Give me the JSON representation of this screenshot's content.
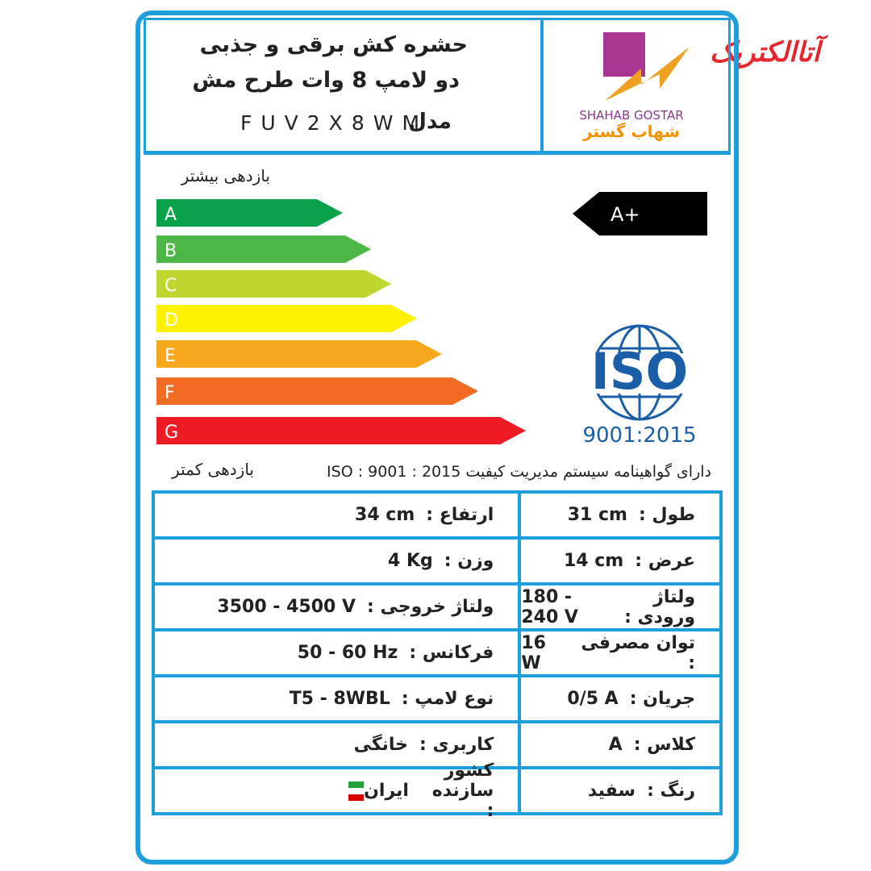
{
  "seller": "آتاالکتریک",
  "header": {
    "title_line1": "حشره کش برقی و جذبی",
    "title_line2": "دو لامپ 8 وات طرح مش",
    "model_label": "مدل",
    "model": "FUV2X8WM"
  },
  "brand": {
    "name_en": "SHAHAB GOSTAR",
    "name_fa": "شهاب گستر"
  },
  "energy": {
    "top_label": "بازدهی بیشتر",
    "bottom_label": "بازدهی کمتر",
    "rating": "A+",
    "grades": [
      {
        "letter": "A",
        "color": "#0aa14b"
      },
      {
        "letter": "B",
        "color": "#4db848"
      },
      {
        "letter": "C",
        "color": "#bed630"
      },
      {
        "letter": "D",
        "color": "#fff200"
      },
      {
        "letter": "E",
        "color": "#f6a71b"
      },
      {
        "letter": "F",
        "color": "#f26c23"
      },
      {
        "letter": "G",
        "color": "#ed1c24"
      }
    ]
  },
  "certificate": {
    "logo": "ISO",
    "standard": "9001:2015",
    "note": "دارای گواهینامه سیستم مدیریت کیفیت  ISO : 9001 : 2015"
  },
  "table": {
    "rows": [
      [
        {
          "label": "طول :",
          "value": "31 cm"
        },
        {
          "label": "ارتفاع :",
          "value": "34 cm"
        }
      ],
      [
        {
          "label": "عرض :",
          "value": "14 cm"
        },
        {
          "label": "وزن :",
          "value": "4 Kg"
        }
      ],
      [
        {
          "label": "ولتاژ ورودی :",
          "value": "180 - 240 V"
        },
        {
          "label": "ولتاژ خروجی :",
          "value": "3500 - 4500 V"
        }
      ],
      [
        {
          "label": "توان مصرفی :",
          "value": "16 W"
        },
        {
          "label": "فرکانس :",
          "value": "50 - 60 Hz"
        }
      ],
      [
        {
          "label": "جریان :",
          "value": "0/5 A"
        },
        {
          "label": "نوع لامپ :",
          "value": "T5 - 8WBL"
        }
      ],
      [
        {
          "label": "کلاس :",
          "value": "A"
        },
        {
          "label": "کاربری :",
          "value": "خانگی"
        }
      ],
      [
        {
          "label": "رنگ :",
          "value": "سفید"
        },
        {
          "label": "کشور سازنده :",
          "value": "ایران"
        }
      ]
    ]
  }
}
